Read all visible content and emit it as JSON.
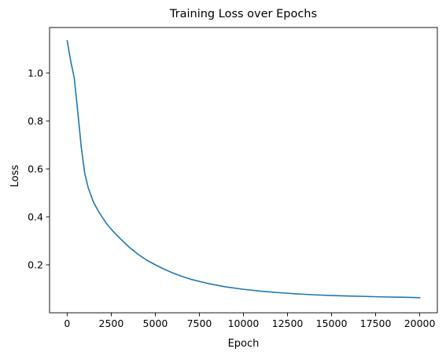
{
  "chart_data": {
    "type": "line",
    "title": "Training Loss over Epochs",
    "xlabel": "Epoch",
    "ylabel": "Loss",
    "xlim": [
      -1000,
      21000
    ],
    "ylim": [
      0.0,
      1.19
    ],
    "xticks": [
      0,
      2500,
      5000,
      7500,
      10000,
      12500,
      15000,
      17500,
      20000
    ],
    "xtick_labels": [
      "0",
      "2500",
      "5000",
      "7500",
      "10000",
      "12500",
      "15000",
      "17500",
      "20000"
    ],
    "yticks": [
      0.2,
      0.4,
      0.6,
      0.8,
      1.0
    ],
    "ytick_labels": [
      "0.2",
      "0.4",
      "0.6",
      "0.8",
      "1.0"
    ],
    "grid": false,
    "legend": false,
    "colors": {
      "line": "#1f77b4"
    },
    "series": [
      {
        "x": [
          0,
          200,
          400,
          600,
          800,
          1000,
          1200,
          1500,
          1800,
          2200,
          2600,
          3000,
          3500,
          4000,
          4500,
          5000,
          5500,
          6000,
          6500,
          7000,
          8000,
          9000,
          10000,
          11000,
          12000,
          13000,
          14000,
          15000,
          16000,
          17000,
          18000,
          19000,
          20000
        ],
        "y": [
          1.135,
          1.05,
          0.98,
          0.84,
          0.69,
          0.58,
          0.52,
          0.46,
          0.42,
          0.375,
          0.34,
          0.31,
          0.275,
          0.245,
          0.22,
          0.2,
          0.182,
          0.166,
          0.152,
          0.14,
          0.122,
          0.108,
          0.098,
          0.09,
          0.084,
          0.079,
          0.075,
          0.072,
          0.07,
          0.068,
          0.066,
          0.065,
          0.063
        ]
      }
    ]
  }
}
